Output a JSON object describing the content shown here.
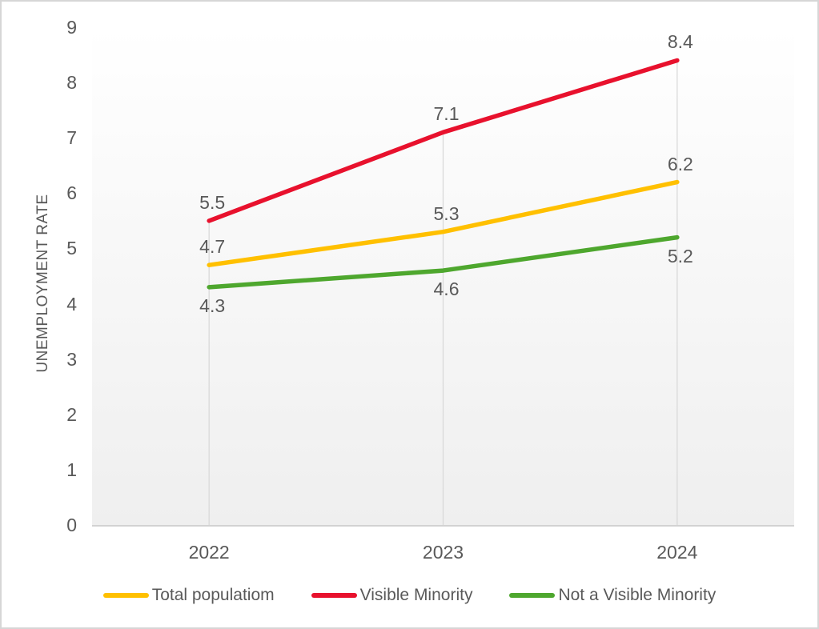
{
  "chart": {
    "y_axis_title": "UNEMPLOYMENT RATE",
    "text_color": "#595959",
    "drop_line_color": "#d9d9d9",
    "axis_line_color": "#d2d2d2",
    "plot_bg_top": "#ffffff",
    "plot_bg_bottom": "#efefef"
  },
  "chart_data": {
    "type": "line",
    "title": "",
    "xlabel": "",
    "ylabel": "UNEMPLOYMENT RATE",
    "categories": [
      "2022",
      "2023",
      "2024"
    ],
    "series": [
      {
        "name": "Total populatiom",
        "color": "#FFC000",
        "values": [
          4.7,
          5.3,
          6.2
        ],
        "label_side": "above"
      },
      {
        "name": "Visible Minority",
        "color": "#E8112D",
        "values": [
          5.5,
          7.1,
          8.4
        ],
        "label_side": "above"
      },
      {
        "name": "Not a Visible Minority",
        "color": "#4EA72E",
        "values": [
          4.3,
          4.6,
          5.2
        ],
        "label_side": "below"
      }
    ],
    "ylim": [
      0,
      9
    ],
    "yticks": [
      0,
      1,
      2,
      3,
      4,
      5,
      6,
      7,
      8,
      9
    ],
    "grid": "vertical-drop-lines",
    "legend_position": "bottom",
    "data_labels": true
  }
}
